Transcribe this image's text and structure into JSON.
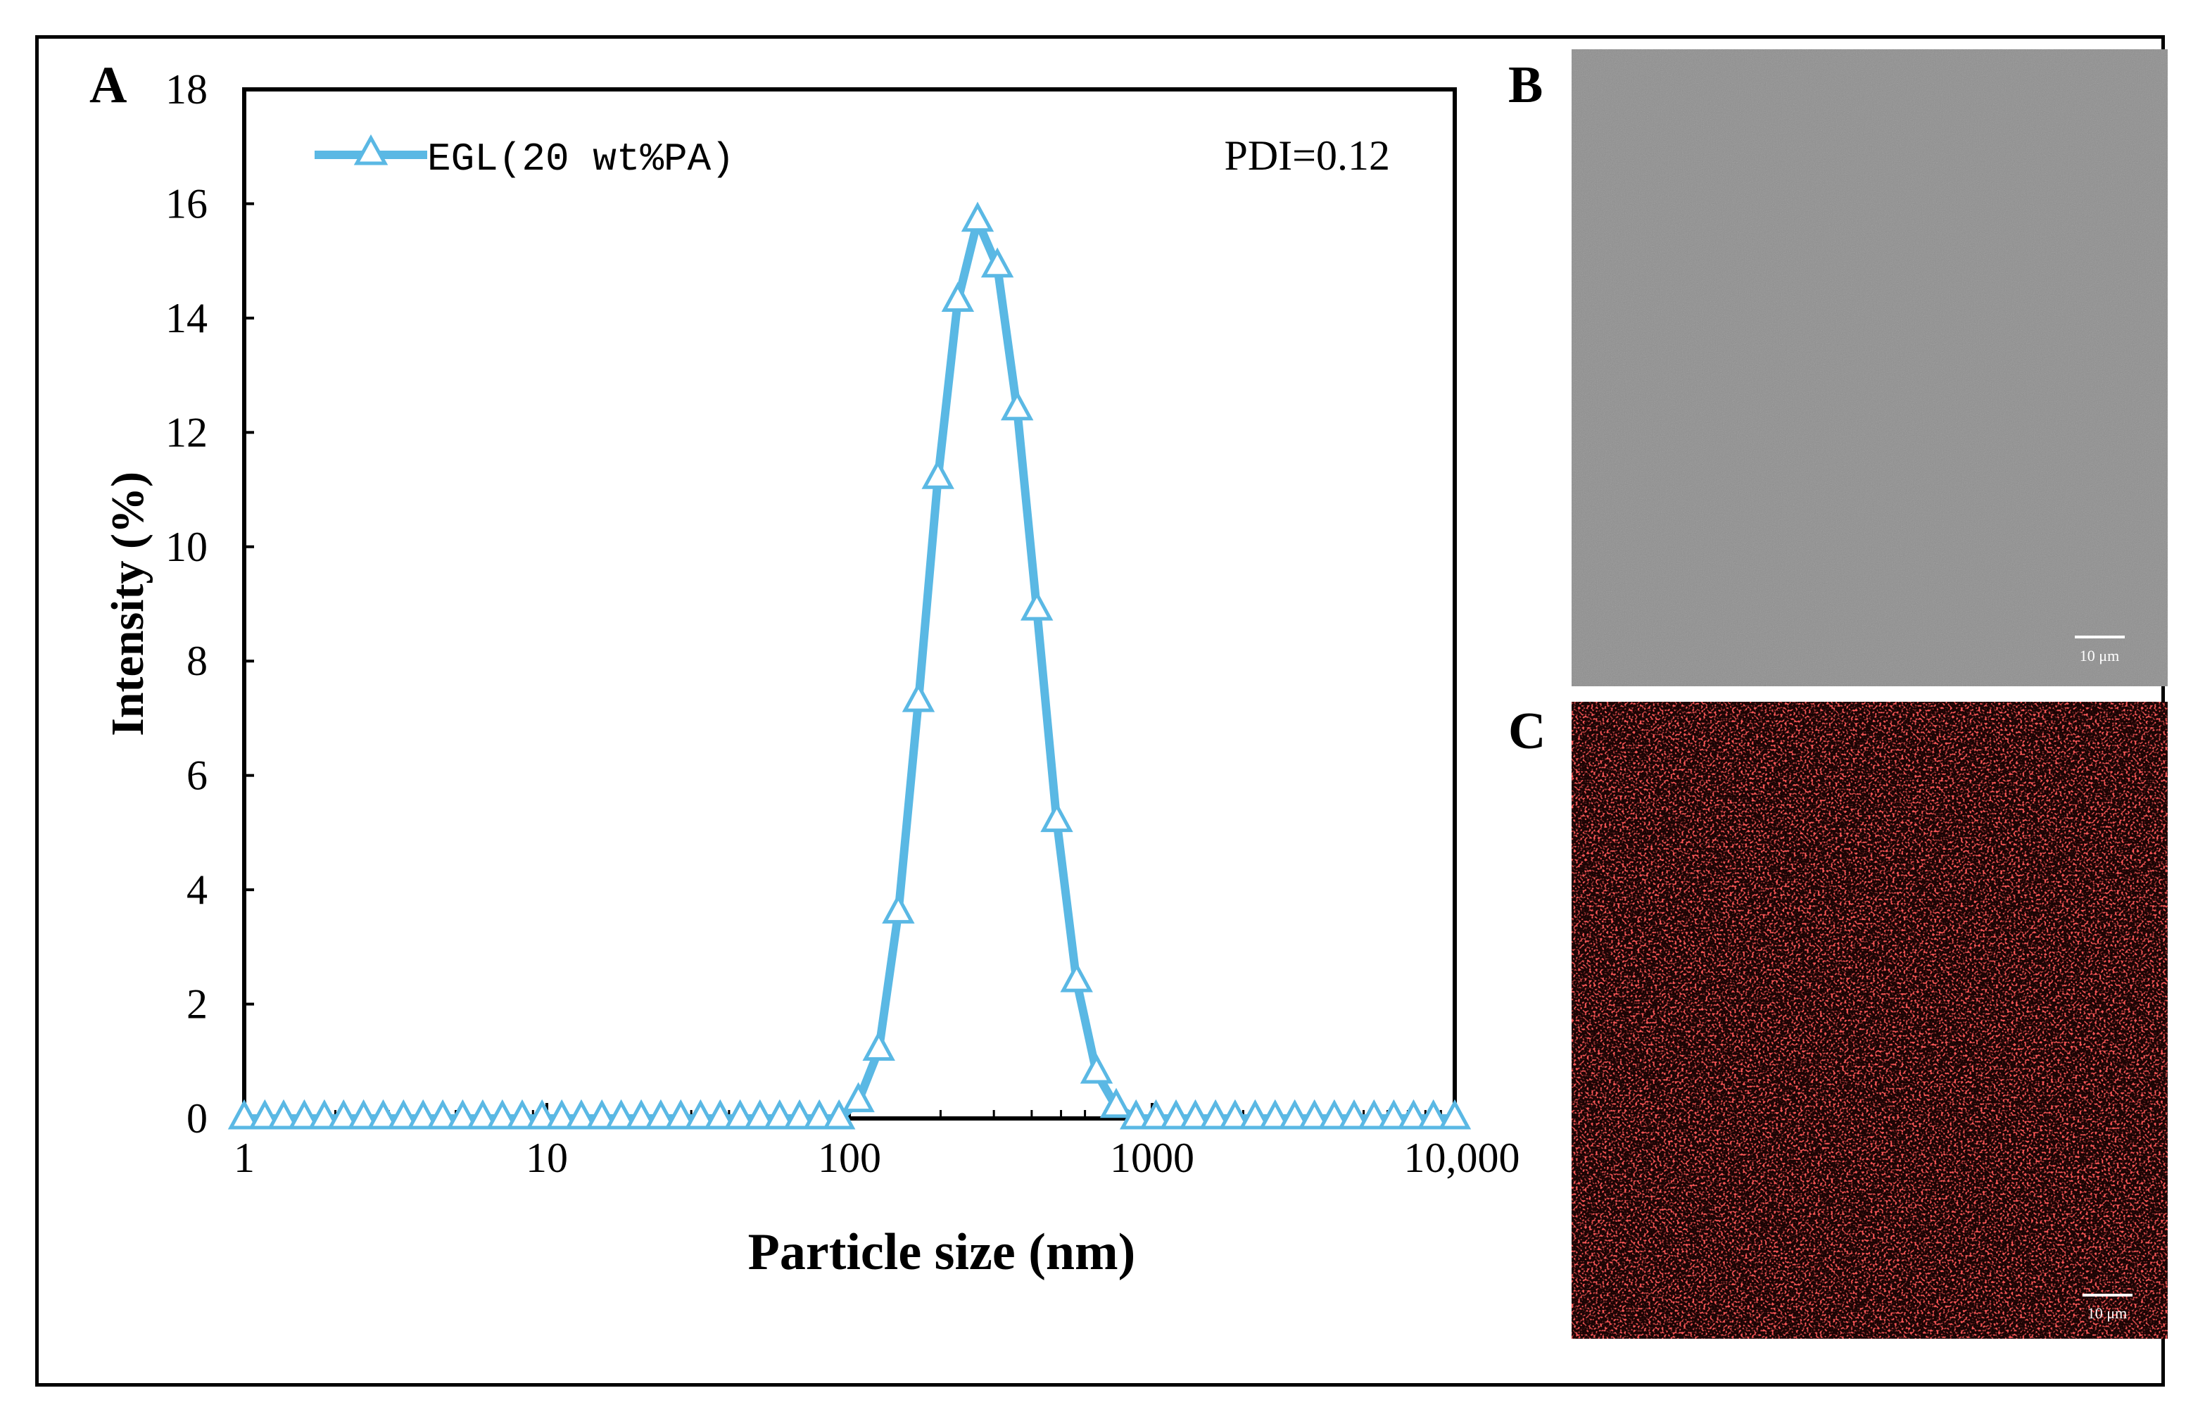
{
  "chart_data": {
    "type": "line",
    "panel_label": "A",
    "xscale": "log",
    "xlim": [
      1,
      10000
    ],
    "ylim": [
      0,
      18
    ],
    "xticks": [
      {
        "value": 1,
        "label": "1"
      },
      {
        "value": 10,
        "label": "10"
      },
      {
        "value": 100,
        "label": "100"
      },
      {
        "value": 1000,
        "label": "1000"
      },
      {
        "value": 10000,
        "label": "10,000"
      }
    ],
    "yticks": [
      {
        "value": 0,
        "label": "0"
      },
      {
        "value": 2,
        "label": "2"
      },
      {
        "value": 4,
        "label": "4"
      },
      {
        "value": 6,
        "label": "6"
      },
      {
        "value": 8,
        "label": "8"
      },
      {
        "value": 10,
        "label": "10"
      },
      {
        "value": 12,
        "label": "12"
      },
      {
        "value": 14,
        "label": "14"
      },
      {
        "value": 16,
        "label": "16"
      },
      {
        "value": 18,
        "label": "18"
      }
    ],
    "xlabel": "Particle size (nm)",
    "ylabel": "Intensity (%)",
    "annotation": "PDI=0.12",
    "legend_position": "top-left",
    "series": [
      {
        "name": "EGL(20 wt%PA)",
        "color": "#5ab8e4",
        "marker": "open-triangle",
        "points": [
          {
            "x": 1.0,
            "y": 0
          },
          {
            "x": 1.17,
            "y": 0
          },
          {
            "x": 1.35,
            "y": 0
          },
          {
            "x": 1.58,
            "y": 0
          },
          {
            "x": 1.84,
            "y": 0
          },
          {
            "x": 2.13,
            "y": 0
          },
          {
            "x": 2.48,
            "y": 0
          },
          {
            "x": 2.88,
            "y": 0
          },
          {
            "x": 3.36,
            "y": 0
          },
          {
            "x": 3.9,
            "y": 0
          },
          {
            "x": 4.53,
            "y": 0
          },
          {
            "x": 5.27,
            "y": 0
          },
          {
            "x": 6.14,
            "y": 0
          },
          {
            "x": 7.13,
            "y": 0
          },
          {
            "x": 8.29,
            "y": 0
          },
          {
            "x": 9.64,
            "y": 0
          },
          {
            "x": 11.2,
            "y": 0
          },
          {
            "x": 13.0,
            "y": 0
          },
          {
            "x": 15.2,
            "y": 0
          },
          {
            "x": 17.6,
            "y": 0
          },
          {
            "x": 20.5,
            "y": 0
          },
          {
            "x": 23.8,
            "y": 0
          },
          {
            "x": 27.7,
            "y": 0
          },
          {
            "x": 32.2,
            "y": 0
          },
          {
            "x": 37.4,
            "y": 0
          },
          {
            "x": 43.5,
            "y": 0
          },
          {
            "x": 50.6,
            "y": 0
          },
          {
            "x": 58.8,
            "y": 0
          },
          {
            "x": 68.4,
            "y": 0
          },
          {
            "x": 79.5,
            "y": 0
          },
          {
            "x": 92.4,
            "y": 0
          },
          {
            "x": 107.0,
            "y": 0.3
          },
          {
            "x": 125.0,
            "y": 1.2
          },
          {
            "x": 145.0,
            "y": 3.6
          },
          {
            "x": 169.0,
            "y": 7.3
          },
          {
            "x": 196.0,
            "y": 11.2
          },
          {
            "x": 228.0,
            "y": 14.3
          },
          {
            "x": 265.0,
            "y": 15.7
          },
          {
            "x": 308.0,
            "y": 14.9
          },
          {
            "x": 358.0,
            "y": 12.4
          },
          {
            "x": 416.0,
            "y": 8.9
          },
          {
            "x": 484.0,
            "y": 5.2
          },
          {
            "x": 563.0,
            "y": 2.4
          },
          {
            "x": 655.0,
            "y": 0.8
          },
          {
            "x": 761.0,
            "y": 0.2
          },
          {
            "x": 885.0,
            "y": 0
          },
          {
            "x": 1030.0,
            "y": 0
          },
          {
            "x": 1200.0,
            "y": 0
          },
          {
            "x": 1390.0,
            "y": 0
          },
          {
            "x": 1620.0,
            "y": 0
          },
          {
            "x": 1880.0,
            "y": 0
          },
          {
            "x": 2190.0,
            "y": 0
          },
          {
            "x": 2550.0,
            "y": 0
          },
          {
            "x": 2960.0,
            "y": 0
          },
          {
            "x": 3440.0,
            "y": 0
          },
          {
            "x": 4000.0,
            "y": 0
          },
          {
            "x": 4650.0,
            "y": 0
          },
          {
            "x": 5410.0,
            "y": 0
          },
          {
            "x": 6290.0,
            "y": 0
          },
          {
            "x": 7310.0,
            "y": 0
          },
          {
            "x": 8500.0,
            "y": 0
          },
          {
            "x": 10000.0,
            "y": 0
          }
        ]
      }
    ]
  },
  "panels": {
    "b": {
      "label": "B",
      "scale_bar": "10 μm",
      "background": "#8f8f8f"
    },
    "c": {
      "label": "C",
      "scale_bar": "10 μm",
      "background": "#1a0404",
      "dot_color": "#ff2020"
    }
  }
}
